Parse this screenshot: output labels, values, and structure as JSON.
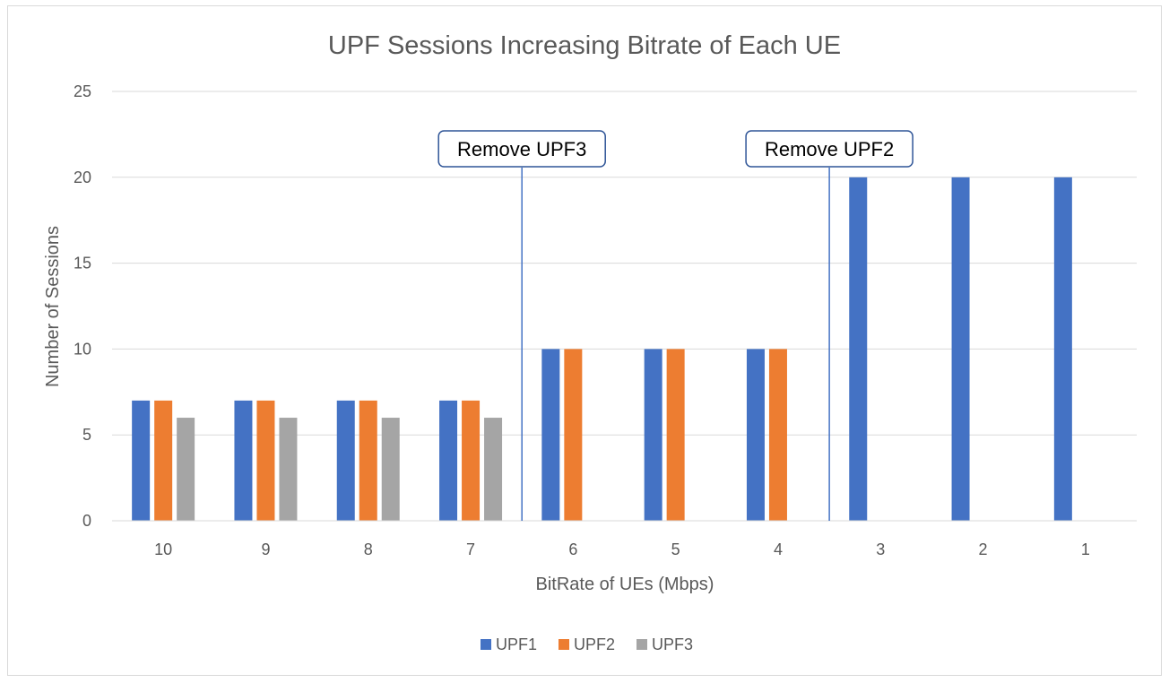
{
  "chart_data": {
    "type": "bar",
    "title": "UPF Sessions Increasing Bitrate of Each UE",
    "xlabel": "BitRate of UEs (Mbps)",
    "ylabel": "Number of Sessions",
    "ylim": [
      0,
      25
    ],
    "yticks": [
      "0",
      "5",
      "10",
      "15",
      "20",
      "25"
    ],
    "categories": [
      "10",
      "9",
      "8",
      "7",
      "6",
      "5",
      "4",
      "3",
      "2",
      "1"
    ],
    "series": [
      {
        "name": "UPF1",
        "color": "#4472c4",
        "values": [
          7,
          7,
          7,
          7,
          10,
          10,
          10,
          20,
          20,
          20
        ]
      },
      {
        "name": "UPF2",
        "color": "#ed7d31",
        "values": [
          7,
          7,
          7,
          7,
          10,
          10,
          10,
          0,
          0,
          0
        ]
      },
      {
        "name": "UPF3",
        "color": "#a5a5a5",
        "values": [
          6,
          6,
          6,
          6,
          0,
          0,
          0,
          0,
          0,
          0
        ]
      }
    ],
    "grid": true,
    "legend": "bottom",
    "annotations": [
      {
        "label": "Remove UPF3",
        "between": [
          "7",
          "6"
        ]
      },
      {
        "label": "Remove UPF2",
        "between": [
          "4",
          "3"
        ]
      }
    ],
    "colors": {
      "gridline": "#d9d9d9",
      "text": "#595959",
      "marker_line": "#4472c4",
      "callout_border": "#2f5597"
    }
  }
}
